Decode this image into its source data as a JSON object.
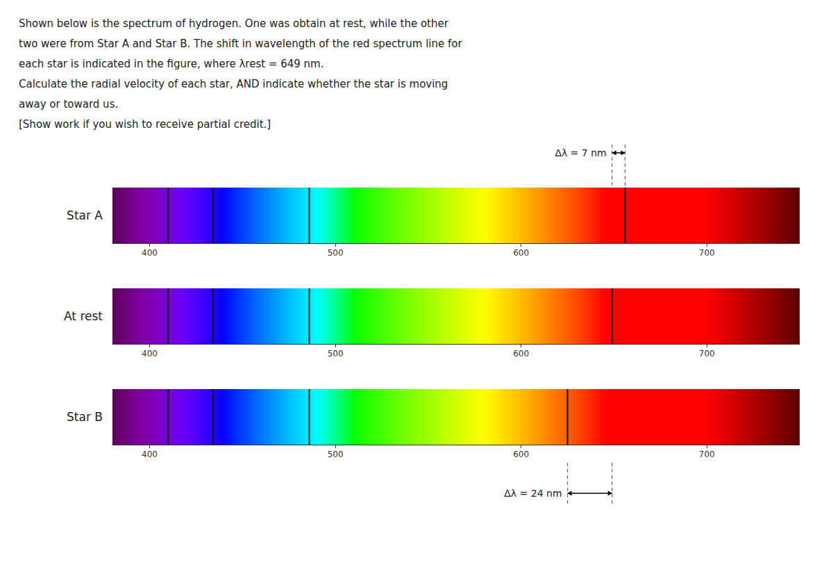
{
  "chart_data": {
    "type": "spectrum",
    "title": [
      "Shown below is the spectrum of hydrogen. One was obtain at rest, while the other",
      "two were from Star A and Star B. The shift in wavelength of the red spectrum line for",
      "each star is indicated in the figure, where λrest = 649 nm.",
      "Calculate the radial velocity of each star, AND indicate whether the star is moving",
      "away or toward us.",
      "[Show work if you wish to receive partial credit.]"
    ],
    "series": [
      {
        "name": "Star A",
        "values": [
          410,
          434,
          486,
          656
        ]
      },
      {
        "name": "At rest",
        "values": [
          410,
          434,
          486,
          649
        ]
      },
      {
        "name": "Star B",
        "values": [
          410,
          434,
          486,
          625
        ]
      }
    ],
    "color": "#000000",
    "xlim": [
      380,
      750
    ],
    "xticks": [
      400,
      500,
      600,
      700
    ],
    "annotations": [
      {
        "text": "Δλ = 7 nm",
        "series": "Star A",
        "x": [
          649,
          656
        ]
      },
      {
        "text": "Δλ = 24 nm",
        "series": "Star B",
        "x": [
          625,
          649
        ]
      }
    ]
  }
}
